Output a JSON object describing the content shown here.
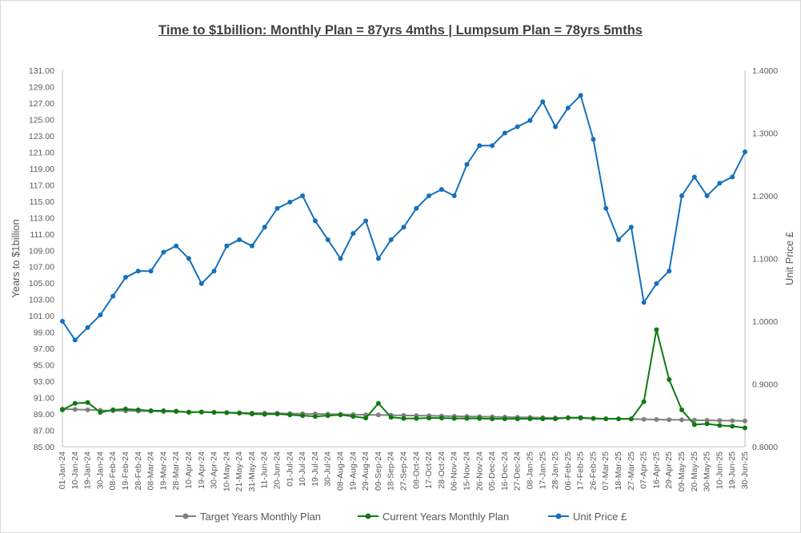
{
  "chart_data": {
    "type": "line",
    "title": "Time to $1billion: Monthly Plan = 87yrs 4mths | Lumpsum Plan = 78yrs 5mths",
    "ylabel": "Years to $1billion",
    "y2label": "Unit Price £",
    "ylim": [
      85,
      131
    ],
    "y2lim": [
      0.8,
      1.4
    ],
    "y_ticks": [
      "85.00",
      "87.00",
      "89.00",
      "91.00",
      "93.00",
      "95.00",
      "97.00",
      "99.00",
      "101.00",
      "103.00",
      "105.00",
      "107.00",
      "109.00",
      "111.00",
      "113.00",
      "115.00",
      "117.00",
      "119.00",
      "121.00",
      "123.00",
      "125.00",
      "127.00",
      "129.00",
      "131.00"
    ],
    "y2_ticks": [
      "0.8000",
      "0.9000",
      "1.0000",
      "1.1000",
      "1.2000",
      "1.3000",
      "1.4000"
    ],
    "categories": [
      "01-Jan-24",
      "10-Jan-24",
      "19-Jan-24",
      "30-Jan-24",
      "08-Feb-24",
      "19-Feb-24",
      "28-Feb-24",
      "08-Mar-24",
      "19-Mar-24",
      "28-Mar-24",
      "10-Apr-24",
      "19-Apr-24",
      "30-Apr-24",
      "10-May-24",
      "21-May-24",
      "31-May-24",
      "11-Jun-24",
      "20-Jun-24",
      "01-Jul-24",
      "10-Jul-24",
      "19-Jul-24",
      "30-Jul-24",
      "08-Aug-24",
      "19-Aug-24",
      "29-Aug-24",
      "09-Sep-24",
      "18-Sep-24",
      "27-Sep-24",
      "08-Oct-24",
      "17-Oct-24",
      "28-Oct-24",
      "06-Nov-24",
      "15-Nov-24",
      "26-Nov-24",
      "05-Dec-24",
      "16-Dec-24",
      "27-Dec-24",
      "08-Jan-25",
      "17-Jan-25",
      "28-Jan-25",
      "06-Feb-25",
      "17-Feb-25",
      "26-Feb-25",
      "07-Mar-25",
      "18-Mar-25",
      "27-Mar-25",
      "07-Apr-25",
      "16-Apr-25",
      "29-Apr-25",
      "09-May-25",
      "20-May-25",
      "30-May-25",
      "10-Jun-25",
      "19-Jun-25",
      "30-Jun-25"
    ],
    "series": [
      {
        "name": "Target Years Monthly Plan",
        "color": "#808080",
        "axis": "left",
        "values": [
          89.6,
          89.55,
          89.5,
          89.45,
          89.4,
          89.38,
          89.36,
          89.34,
          89.3,
          89.28,
          89.25,
          89.22,
          89.2,
          89.18,
          89.15,
          89.12,
          89.1,
          89.08,
          89.05,
          89.02,
          89.0,
          88.98,
          88.95,
          88.92,
          88.9,
          88.88,
          88.85,
          88.82,
          88.8,
          88.78,
          88.75,
          88.72,
          88.7,
          88.68,
          88.65,
          88.62,
          88.6,
          88.58,
          88.55,
          88.52,
          88.5,
          88.48,
          88.45,
          88.42,
          88.4,
          88.38,
          88.35,
          88.32,
          88.3,
          88.28,
          88.25,
          88.22,
          88.2,
          88.18,
          88.15
        ]
      },
      {
        "name": "Current Years Monthly Plan",
        "color": "#0f7a0f",
        "axis": "left",
        "values": [
          89.5,
          90.3,
          90.4,
          89.2,
          89.5,
          89.6,
          89.5,
          89.4,
          89.4,
          89.35,
          89.2,
          89.25,
          89.2,
          89.15,
          89.1,
          89.0,
          88.95,
          89.0,
          88.9,
          88.8,
          88.7,
          88.8,
          88.9,
          88.7,
          88.5,
          90.3,
          88.6,
          88.45,
          88.45,
          88.5,
          88.5,
          88.45,
          88.45,
          88.45,
          88.4,
          88.4,
          88.4,
          88.4,
          88.4,
          88.4,
          88.55,
          88.55,
          88.45,
          88.4,
          88.4,
          88.4,
          90.5,
          99.3,
          93.2,
          89.5,
          87.7,
          87.8,
          87.6,
          87.5,
          87.3
        ]
      },
      {
        "name": "Unit Price £",
        "color": "#1570bd",
        "axis": "right",
        "values": [
          1.0,
          0.97,
          0.99,
          1.01,
          1.04,
          1.07,
          1.08,
          1.08,
          1.11,
          1.12,
          1.1,
          1.06,
          1.08,
          1.12,
          1.13,
          1.12,
          1.15,
          1.18,
          1.19,
          1.2,
          1.16,
          1.13,
          1.1,
          1.14,
          1.16,
          1.1,
          1.13,
          1.15,
          1.18,
          1.2,
          1.21,
          1.2,
          1.25,
          1.28,
          1.28,
          1.3,
          1.31,
          1.32,
          1.35,
          1.31,
          1.34,
          1.36,
          1.29,
          1.18,
          1.13,
          1.15,
          1.03,
          1.06,
          1.08,
          1.2,
          1.23,
          1.2,
          1.22,
          1.23,
          1.27
        ]
      }
    ],
    "legend_position": "bottom",
    "grid": false
  }
}
